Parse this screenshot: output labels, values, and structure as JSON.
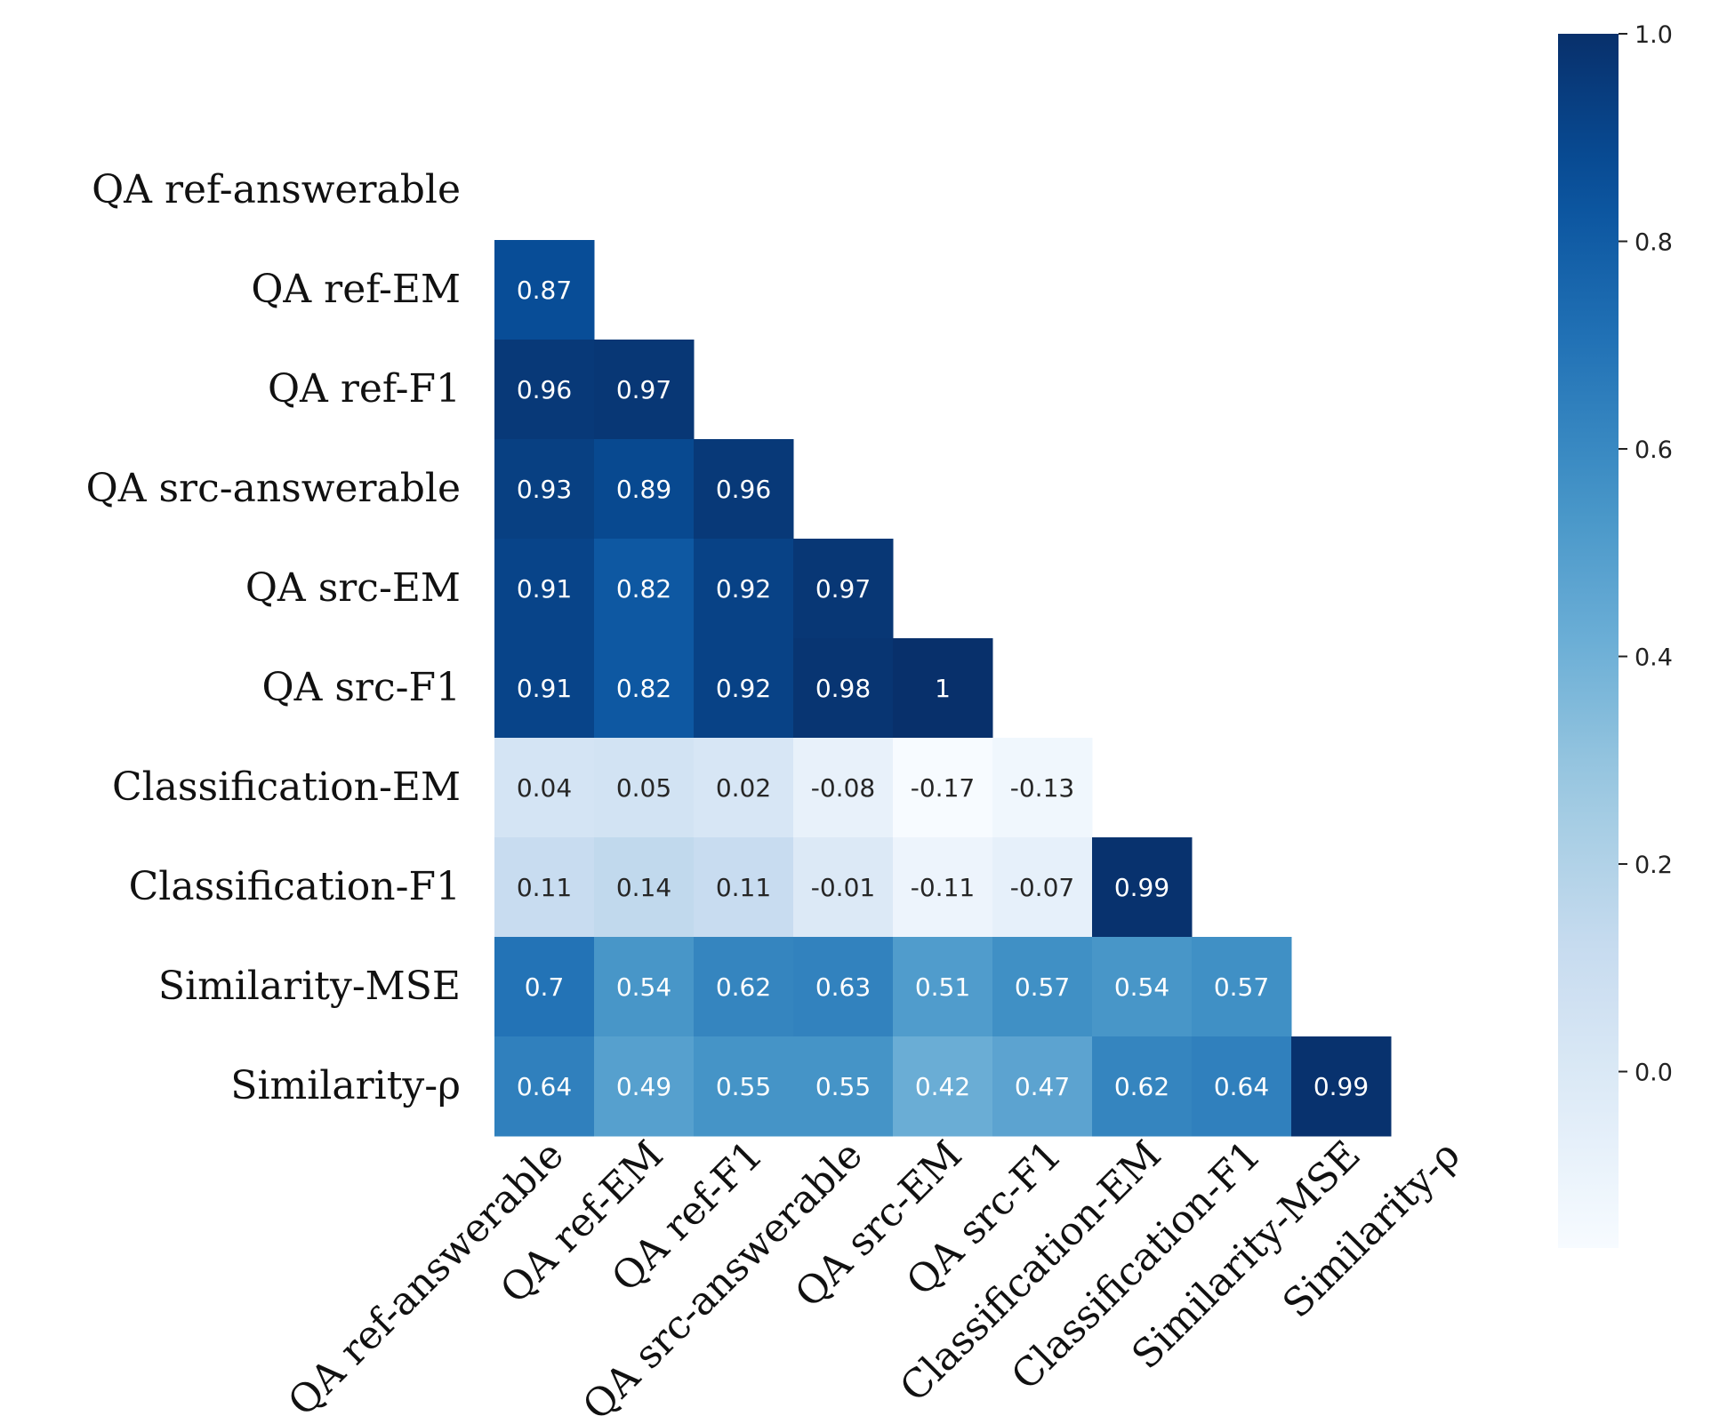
{
  "chart_data": {
    "type": "heatmap",
    "title": "",
    "matrix_style": "lower-triangle",
    "labels": [
      "QA ref-answerable",
      "QA ref-EM",
      "QA ref-F1",
      "QA src-answerable",
      "QA src-EM",
      "QA src-F1",
      "Classification-EM",
      "Classification-F1",
      "Similarity-MSE",
      "Similarity-ρ"
    ],
    "values": [
      [],
      [
        "0.87"
      ],
      [
        "0.96",
        "0.97"
      ],
      [
        "0.93",
        "0.89",
        "0.96"
      ],
      [
        "0.91",
        "0.82",
        "0.92",
        "0.97"
      ],
      [
        "0.91",
        "0.82",
        "0.92",
        "0.98",
        "1"
      ],
      [
        "0.04",
        "0.05",
        "0.02",
        "-0.08",
        "-0.17",
        "-0.13"
      ],
      [
        "0.11",
        "0.14",
        "0.11",
        "-0.01",
        "-0.11",
        "-0.07",
        "0.99"
      ],
      [
        "0.7",
        "0.54",
        "0.62",
        "0.63",
        "0.51",
        "0.57",
        "0.54",
        "0.57"
      ],
      [
        "0.64",
        "0.49",
        "0.55",
        "0.55",
        "0.42",
        "0.47",
        "0.62",
        "0.64",
        "0.99"
      ]
    ],
    "colorbar": {
      "min": -0.17,
      "max": 1.0,
      "ticks": [
        "0.0",
        "0.2",
        "0.4",
        "0.6",
        "0.8",
        "1.0"
      ],
      "cmap": "Blues",
      "color_low": "#f7fbff",
      "color_high": "#08306b"
    }
  }
}
